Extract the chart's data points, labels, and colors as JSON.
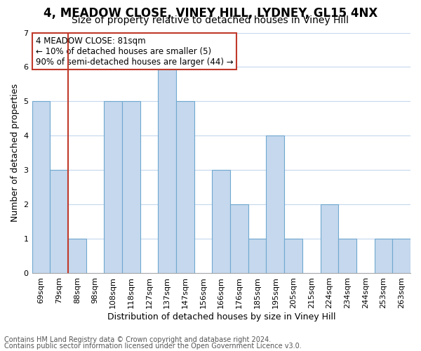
{
  "title": "4, MEADOW CLOSE, VINEY HILL, LYDNEY, GL15 4NX",
  "subtitle": "Size of property relative to detached houses in Viney Hill",
  "xlabel": "Distribution of detached houses by size in Viney Hill",
  "ylabel": "Number of detached properties",
  "footnote1": "Contains HM Land Registry data © Crown copyright and database right 2024.",
  "footnote2": "Contains public sector information licensed under the Open Government Licence v3.0.",
  "bin_labels": [
    "69sqm",
    "79sqm",
    "88sqm",
    "98sqm",
    "108sqm",
    "118sqm",
    "127sqm",
    "137sqm",
    "147sqm",
    "156sqm",
    "166sqm",
    "176sqm",
    "185sqm",
    "195sqm",
    "205sqm",
    "215sqm",
    "224sqm",
    "234sqm",
    "244sqm",
    "253sqm",
    "263sqm"
  ],
  "bar_heights": [
    5,
    3,
    1,
    0,
    5,
    5,
    0,
    6,
    5,
    0,
    3,
    2,
    1,
    4,
    1,
    0,
    2,
    1,
    0,
    1,
    1
  ],
  "highlight_line_after_index": 1,
  "highlight_color": "#c0392b",
  "bar_color": "#c5d8ed",
  "bar_edge_color": "#6fa8d0",
  "annotation_text": "4 MEADOW CLOSE: 81sqm\n← 10% of detached houses are smaller (5)\n90% of semi-detached houses are larger (44) →",
  "annotation_box_color": "white",
  "annotation_box_edge_color": "#c0392b",
  "ylim": [
    0,
    7
  ],
  "yticks": [
    0,
    1,
    2,
    3,
    4,
    5,
    6,
    7
  ],
  "bg_color": "white",
  "grid_color": "#c5d8ed",
  "title_fontsize": 12,
  "subtitle_fontsize": 10,
  "xlabel_fontsize": 9,
  "ylabel_fontsize": 9,
  "tick_fontsize": 8,
  "footnote_fontsize": 7,
  "annotation_fontsize": 8.5
}
